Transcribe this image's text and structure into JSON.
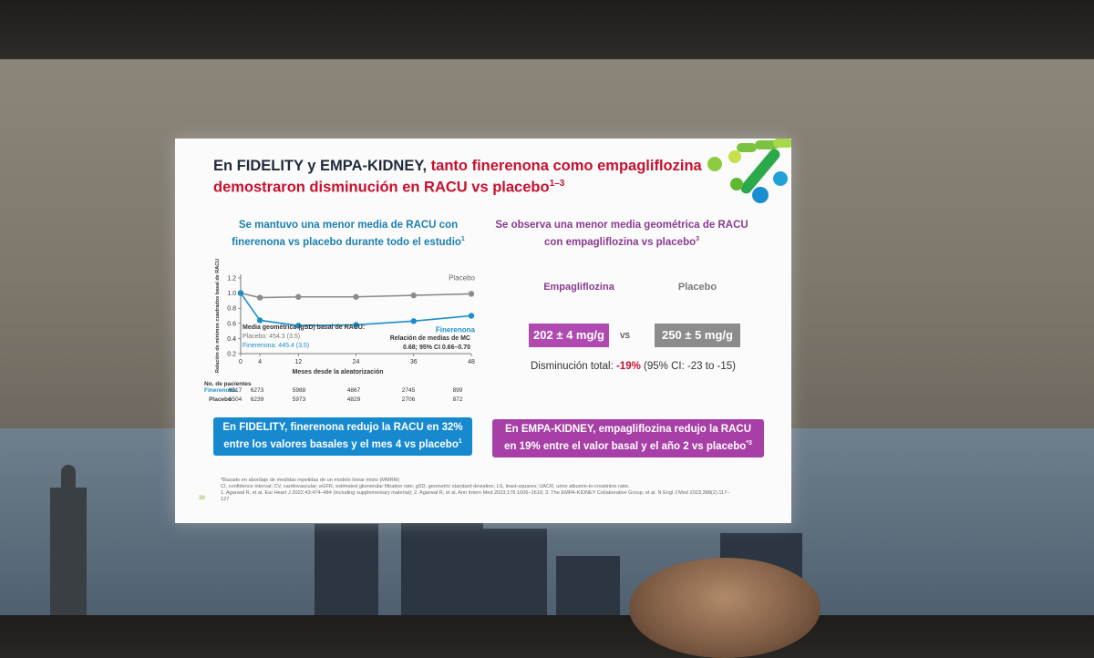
{
  "slide": {
    "title_part1": "En FIDELITY y EMPA-KIDNEY, ",
    "title_part2": "tanto finerenona como empagliflozina demostraron disminución en RACU vs placebo",
    "title_sup": "1–3",
    "left_subtitle": "Se mantuvo una menor media de RACU con finerenona vs placebo durante todo el estudio",
    "left_subtitle_sup": "1",
    "right_subtitle": "Se observa una menor media geométrica de RACU con empagliflozina vs placebo",
    "right_subtitle_sup": "3",
    "page_number": "38"
  },
  "chart_data": {
    "type": "line",
    "x": [
      0,
      4,
      12,
      24,
      36,
      48
    ],
    "series": [
      {
        "name": "Placebo",
        "values": [
          1.0,
          0.94,
          0.95,
          0.95,
          0.97,
          0.99
        ],
        "color": "#8c8c8c"
      },
      {
        "name": "Finerenona",
        "values": [
          1.0,
          0.64,
          0.57,
          0.58,
          0.63,
          0.7
        ],
        "color": "#1b8fc9"
      }
    ],
    "xlabel": "Meses desde la aleatorización",
    "ylabel": "Relación de mínimos cuadrados basal de RACU",
    "xticks": [
      "0",
      "4",
      "12",
      "24",
      "36",
      "48"
    ],
    "yticks": [
      "0.2",
      "0.4",
      "0.6",
      "0.8",
      "1.0",
      "1.2"
    ],
    "ylim": [
      0.2,
      1.2
    ],
    "xlim": [
      0,
      48
    ],
    "annotations": {
      "baseline_title": "Media geométrica (gSD) basal de RACU:",
      "baseline_placebo": "Placebo: 454.3 (3.5)",
      "baseline_finerenona": "Finerenona: 445.4 (3.5)",
      "ratio_title": "Relación de medias de MC",
      "ratio_value": "0.68; 95% CI 0.66–0.70"
    }
  },
  "patients_table": {
    "header": "No. de pacientes",
    "rows": [
      {
        "label": "Finerenona",
        "values": [
          "6517",
          "6273",
          "5988",
          "4867",
          "2745",
          "899"
        ]
      },
      {
        "label": "Placebo",
        "values": [
          "6504",
          "6239",
          "5973",
          "4829",
          "2706",
          "872"
        ]
      }
    ]
  },
  "empa": {
    "drug_label": "Empagliflozina",
    "placebo_label": "Placebo",
    "drug_value": "202 ± 4 mg/g",
    "placebo_value": "250 ± 5 mg/g",
    "vs": "vs",
    "reduction_label": "Disminución total: ",
    "reduction_pct": "-19%",
    "reduction_ci": " (95% CI: -23 to -15)"
  },
  "boxes": {
    "left": "En FIDELITY, finerenona redujo la RACU en 32% entre los valores basales y el mes 4 vs placebo",
    "left_sup": "1",
    "right": "En EMPA-KIDNEY, empagliflozina redujo la RACU en 19% entre el valor basal y el año 2 vs placebo",
    "right_sup": "*3"
  },
  "footnotes": [
    "*Basado en abordaje de medidas repetidas de un modelo linear mixto (MMRM)",
    "CI, confidence interval; CV, cardiovascular; eGFR, estimated glomerular filtration rate; gSD, geometric standard deviation; LS, least-squares; UACR, urine albumin-to-creatinine ratio.",
    "1. Agarwal R, et al. Eur Heart J 2022;43:474–484 (including supplementary material); 2. Agarwal R, et al. Ann Intern Med 2023;176:1606–1616; 3. The EMPA-KIDNEY Collaborative Group, et al. N Engl J Med 2023;388(2):117–127"
  ],
  "colors": {
    "accent_red": "#c8102e",
    "finerenona_blue": "#1b8fc9",
    "empa_purple": "#a83fa6",
    "placebo_gray": "#8c8c8c"
  }
}
